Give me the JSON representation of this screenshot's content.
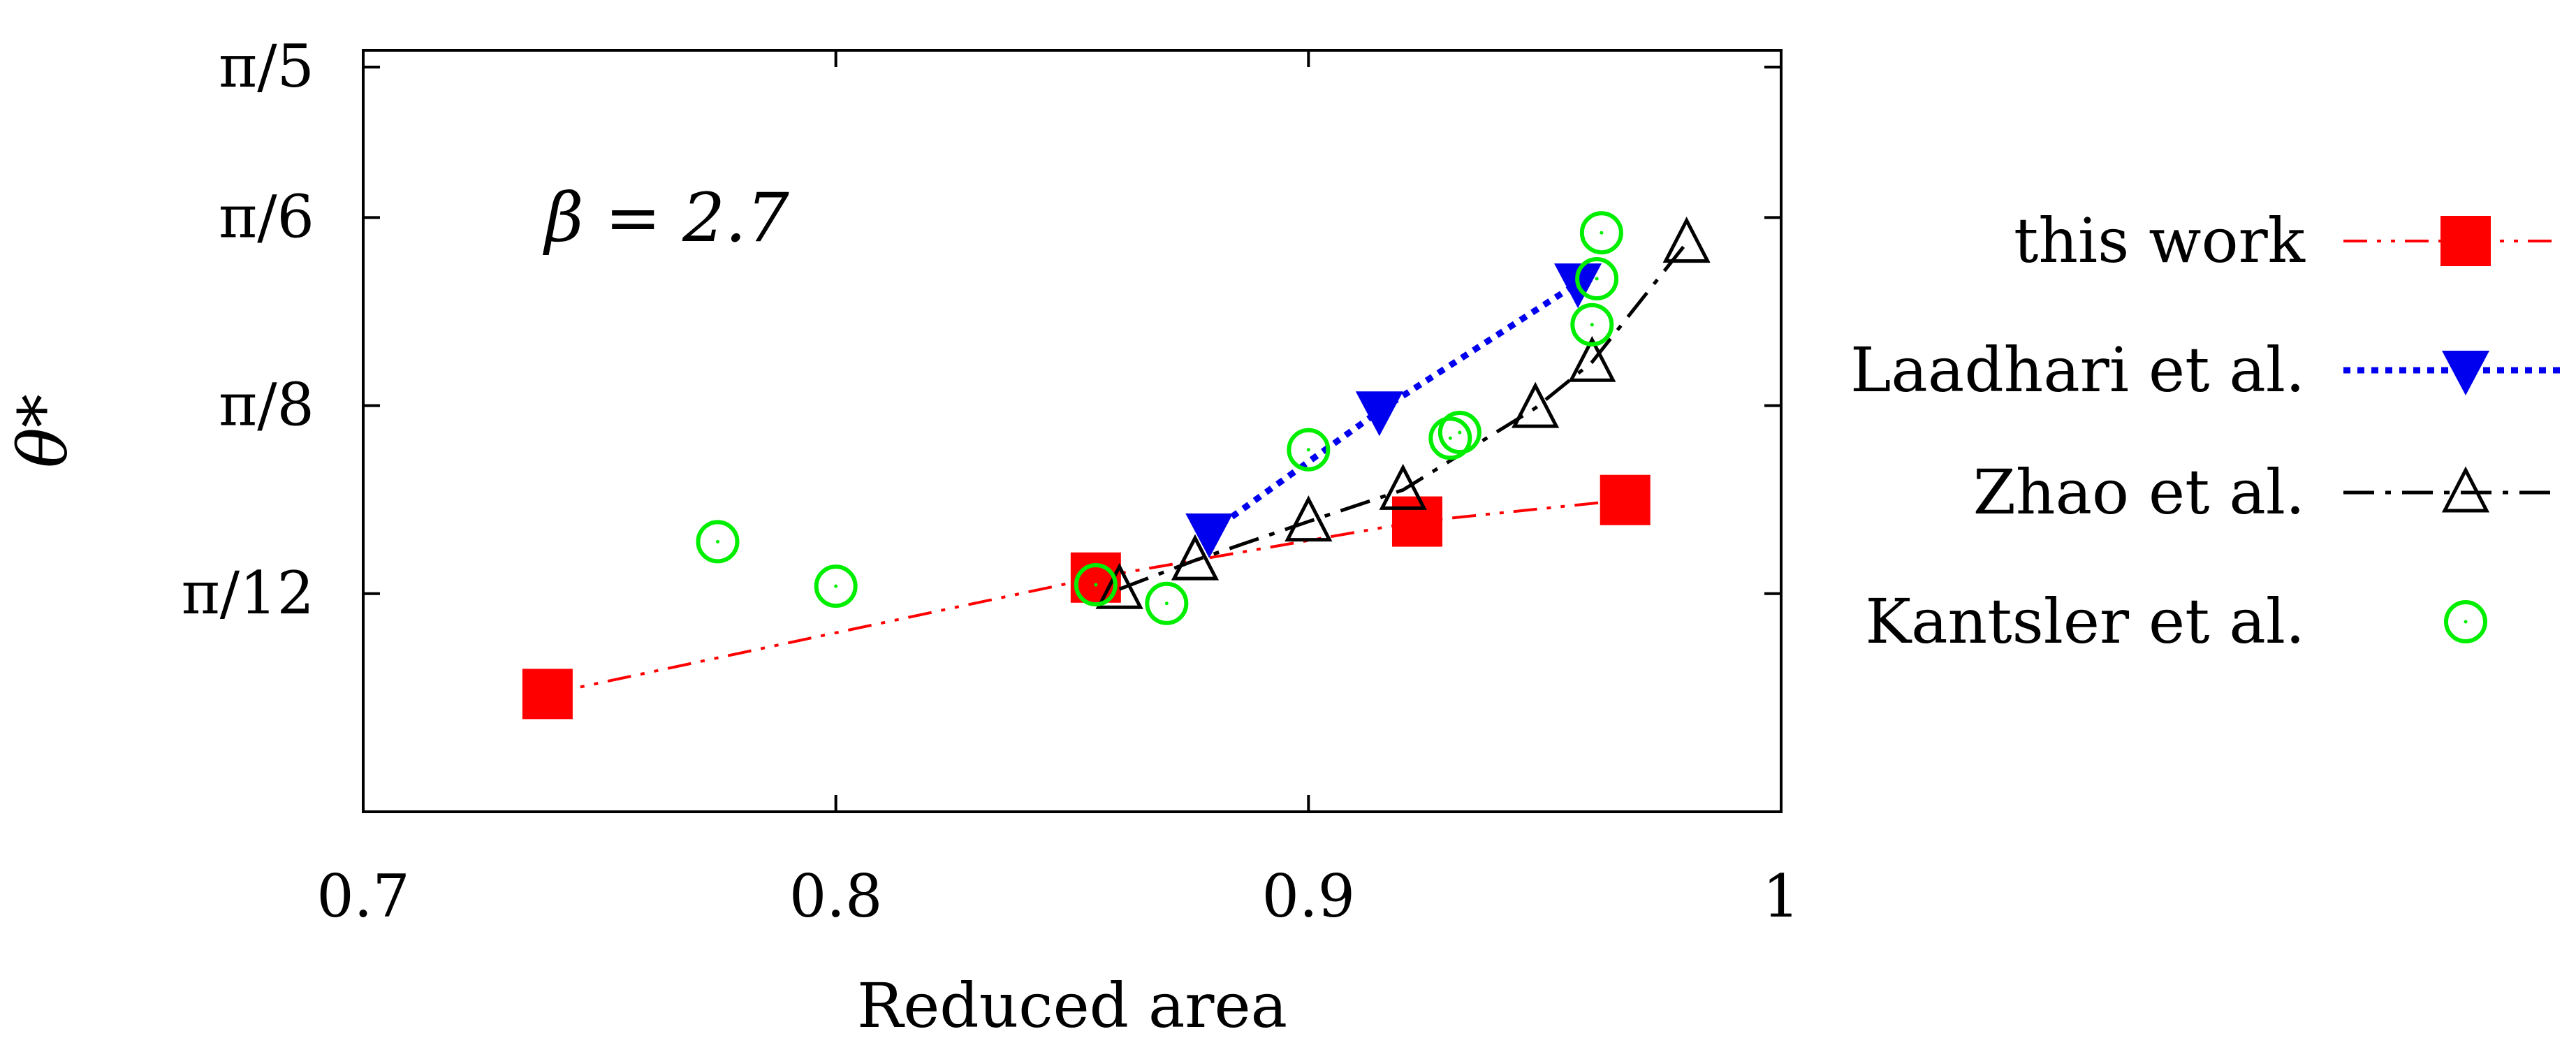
{
  "chart_data": {
    "type": "line",
    "xlabel": "Reduced area",
    "ylabel": "θ*",
    "xlim": [
      0.7,
      1.0
    ],
    "ylim": [
      0.11,
      0.64
    ],
    "x_ticks": [
      {
        "value": 0.7,
        "label": "0.7"
      },
      {
        "value": 0.8,
        "label": "0.8"
      },
      {
        "value": 0.9,
        "label": "0.9"
      },
      {
        "value": 1.0,
        "label": "1"
      }
    ],
    "y_ticks": [
      {
        "value": 0.2618,
        "label": "π/12"
      },
      {
        "value": 0.3927,
        "label": "π/8"
      },
      {
        "value": 0.5236,
        "label": "π/6"
      },
      {
        "value": 0.6283,
        "label": "π/5"
      }
    ],
    "annotation": "β = 2.7",
    "legend_position": "right",
    "series": [
      {
        "name": "this work",
        "color": "#ff0000",
        "marker": "filled-square",
        "line": "dash-dot-dot",
        "x": [
          0.739,
          0.855,
          0.923,
          0.967
        ],
        "y": [
          0.192,
          0.273,
          0.312,
          0.327
        ]
      },
      {
        "name": "Laadhari et al.",
        "color": "#0000ee",
        "marker": "filled-triangle-down",
        "line": "dotted",
        "x": [
          0.879,
          0.915,
          0.957
        ],
        "y": [
          0.304,
          0.389,
          0.478
        ]
      },
      {
        "name": "Zhao et al.",
        "color": "#000000",
        "marker": "open-triangle-up",
        "line": "dash-dot",
        "x": [
          0.86,
          0.876,
          0.9,
          0.92,
          0.948,
          0.96,
          0.98
        ],
        "y": [
          0.265,
          0.285,
          0.312,
          0.334,
          0.391,
          0.423,
          0.506
        ]
      },
      {
        "name": "Kantsler et al.",
        "color": "#00ee00",
        "marker": "open-circle",
        "line": "none",
        "x": [
          0.775,
          0.8,
          0.855,
          0.87,
          0.9,
          0.93,
          0.932,
          0.96,
          0.961,
          0.962
        ],
        "y": [
          0.298,
          0.267,
          0.268,
          0.255,
          0.362,
          0.37,
          0.374,
          0.449,
          0.481,
          0.513
        ]
      }
    ]
  }
}
